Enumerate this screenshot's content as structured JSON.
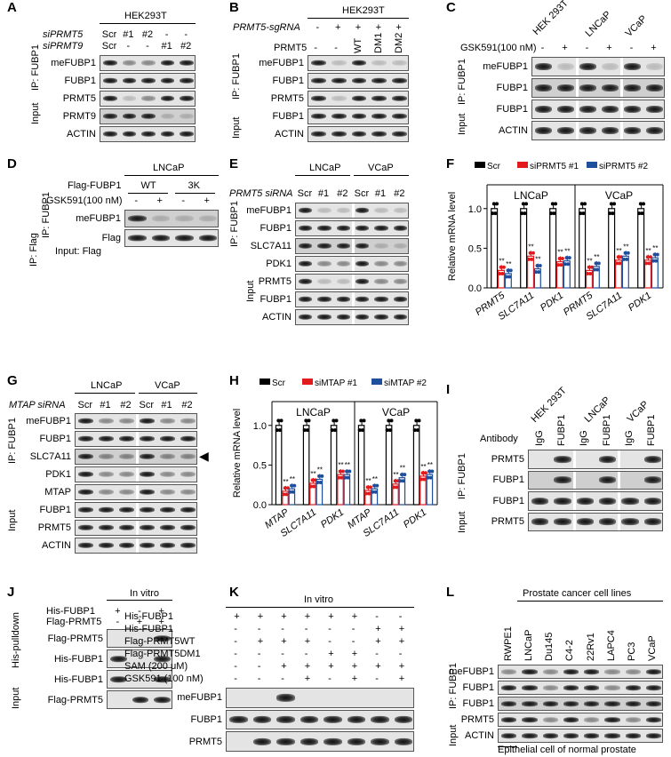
{
  "panels": {
    "A": {
      "label": "A",
      "cell": "HEK293T",
      "row1_label": "siPRMT5",
      "row1_vals": [
        "Scr",
        "#1",
        "#2",
        "-",
        "-"
      ],
      "row2_label": "siPRMT9",
      "row2_vals": [
        "Scr",
        "-",
        "-",
        "#1",
        "#2"
      ],
      "group_ip": "IP: FUBP1",
      "group_input": "Input",
      "blots": [
        "meFUBP1",
        "FUBP1",
        "PRMT5",
        "PRMT9",
        "ACTIN"
      ]
    },
    "B": {
      "label": "B",
      "cell": "HEK293T",
      "row1_label": "PRMT5-sgRNA",
      "row1_vals": [
        "-",
        "+",
        "+",
        "+",
        "+"
      ],
      "row2_label": "PRMT5",
      "row2_vals": [
        "-",
        "-",
        "WT",
        "DM1",
        "DM2"
      ],
      "group_ip": "IP: FUBP1",
      "group_input": "Input",
      "blots": [
        "meFUBP1",
        "FUBP1",
        "PRMT5",
        "FUBP1",
        "ACTIN"
      ]
    },
    "C": {
      "label": "C",
      "cells": [
        "HEK 293T",
        "LNCaP",
        "VCaP"
      ],
      "row1_label": "GSK591(100 nM)",
      "row1_vals": [
        "-",
        "+",
        "-",
        "+",
        "-",
        "+"
      ],
      "group_ip": "IP: FUBP1",
      "group_input": "Input",
      "blots": [
        "meFUBP1",
        "FUBP1",
        "FUBP1",
        "ACTIN"
      ]
    },
    "D": {
      "label": "D",
      "cell": "LNCaP",
      "row1_label": "Flag-FUBP1",
      "row1_vals": [
        "WT",
        "3K"
      ],
      "row2_label": "GSK591(100 nM)",
      "row2_vals": [
        "-",
        "+",
        "-",
        "+"
      ],
      "group_ip": "IP: FUBP1",
      "group_input": "Input: Flag",
      "group_ipflag": "IP: Flag",
      "blots": [
        "meFUBP1",
        "Flag"
      ]
    },
    "E": {
      "label": "E",
      "cells": [
        "LNCaP",
        "VCaP"
      ],
      "row1_label": "PRMT5 siRNA",
      "row1_vals": [
        "Scr",
        "#1",
        "#2",
        "Scr",
        "#1",
        "#2"
      ],
      "group_ip": "IP: FUBP1",
      "group_input": "Input",
      "blots": [
        "meFUBP1",
        "FUBP1",
        "SLC7A11",
        "PDK1",
        "PRMT5",
        "FUBP1",
        "ACTIN"
      ]
    },
    "G": {
      "label": "G",
      "cells": [
        "LNCaP",
        "VCaP"
      ],
      "row1_label": "MTAP siRNA",
      "row1_vals": [
        "Scr",
        "#1",
        "#2",
        "Scr",
        "#1",
        "#2"
      ],
      "group_ip": "IP: FUBP1",
      "group_input": "Input",
      "blots": [
        "meFUBP1",
        "FUBP1",
        "SLC7A11",
        "PDK1",
        "MTAP",
        "FUBP1",
        "PRMT5",
        "ACTIN"
      ]
    },
    "I": {
      "label": "I",
      "cells": [
        "HEK 293T",
        "LNCaP",
        "VCaP"
      ],
      "antibody_label": "Antibody",
      "antibody_vals": [
        "IgG",
        "FUBP1",
        "IgG",
        "FUBP1",
        "IgG",
        "FUBP1"
      ],
      "group_ip": "IP: FUBP1",
      "group_input": "Input",
      "blots": [
        "PRMT5",
        "FUBP1",
        "FUBP1",
        "PRMT5"
      ]
    },
    "J": {
      "label": "J",
      "title": "In vitro",
      "row1_label": "His-FUBP1",
      "row1_vals": [
        "+",
        "-",
        "+"
      ],
      "row2_label": "Flag-PRMT5",
      "row2_vals": [
        "-",
        "+",
        "+"
      ],
      "group_pull": "His-pulldown",
      "group_input": "Input",
      "blots": [
        "Flag-PRMT5",
        "His-FUBP1",
        "His-FUBP1",
        "Flag-PRMT5"
      ]
    },
    "K": {
      "label": "K",
      "title": "In vitro",
      "rows": [
        {
          "label": "His-FUBP1",
          "vals": [
            "+",
            "+",
            "+",
            "+",
            "+",
            "+",
            "-",
            "-"
          ]
        },
        {
          "label": "His-FUBP1",
          "vals": [
            "-",
            "-",
            "-",
            "-",
            "-",
            "-",
            "+",
            "+"
          ]
        },
        {
          "label": "Flag-PRMT5WT",
          "vals": [
            "-",
            "+",
            "+",
            "+",
            "-",
            "-",
            "+",
            "+"
          ]
        },
        {
          "label": "Flag-PRMT5DM1",
          "vals": [
            "-",
            "-",
            "-",
            "-",
            "+",
            "+",
            "-",
            "-"
          ]
        },
        {
          "label": "SAM (200 μM)",
          "vals": [
            "-",
            "-",
            "+",
            "+",
            "+",
            "+",
            "+",
            "+"
          ]
        },
        {
          "label": "GSK591 (100 nM)",
          "vals": [
            "-",
            "-",
            "-",
            "+",
            "-",
            "+",
            "-",
            "+"
          ]
        }
      ],
      "blots": [
        "meFUBP1",
        "FUBP1",
        "PRMT5"
      ]
    },
    "L": {
      "label": "L",
      "title": "Prostate cancer cell lines",
      "cells": [
        "RWPE1",
        "LNCaP",
        "Du145",
        "C4-2",
        "22Rv1",
        "LAPC4",
        "PC3",
        "VCaP"
      ],
      "group_ip": "IP: FUBP1",
      "group_input": "Input",
      "blots": [
        "meFUBP1",
        "FUBP1",
        "FUBP1",
        "PRMT5",
        "ACTIN"
      ],
      "footnote": "Epithelial cell of normal prostate"
    }
  },
  "charts": {
    "F": {
      "label": "F",
      "legend": [
        "Scr",
        "siPRMT5 #1",
        "siPRMT5 #2"
      ],
      "groups": [
        "LNCaP",
        "VCaP"
      ]
    },
    "H": {
      "label": "H",
      "legend": [
        "Scr",
        "siMTAP #1",
        "siMTAP #2"
      ],
      "groups": [
        "LNCaP",
        "VCaP"
      ]
    }
  },
  "chart_data": [
    {
      "type": "bar",
      "panel": "F",
      "ylabel": "Relative mRNA level",
      "ylim": [
        0,
        1.3
      ],
      "yticks": [
        0,
        0.5,
        1.0
      ],
      "categories": [
        "PRMT5",
        "SLC7A11",
        "PDK1",
        "PRMT5",
        "SLC7A11",
        "PDK1"
      ],
      "series": [
        {
          "name": "Scr",
          "color": "#000000",
          "values": [
            1.0,
            1.0,
            1.0,
            1.0,
            1.0,
            1.0
          ]
        },
        {
          "name": "siPRMT5 #1",
          "color": "#e31a1c",
          "values": [
            0.22,
            0.4,
            0.33,
            0.22,
            0.35,
            0.35
          ]
        },
        {
          "name": "siPRMT5 #2",
          "color": "#1f4e9c",
          "values": [
            0.18,
            0.24,
            0.34,
            0.27,
            0.4,
            0.38
          ]
        }
      ],
      "significance": "**"
    },
    {
      "type": "bar",
      "panel": "H",
      "ylabel": "Relative mRNA level",
      "ylim": [
        0,
        1.3
      ],
      "yticks": [
        0,
        0.5,
        1.0
      ],
      "categories": [
        "MTAP",
        "SLC7A11",
        "PDK1",
        "MTAP",
        "SLC7A11",
        "PDK1"
      ],
      "series": [
        {
          "name": "Scr",
          "color": "#000000",
          "values": [
            1.0,
            1.0,
            1.0,
            1.0,
            1.0,
            1.0
          ]
        },
        {
          "name": "siMTAP #1",
          "color": "#e31a1c",
          "values": [
            0.17,
            0.27,
            0.38,
            0.18,
            0.26,
            0.36
          ]
        },
        {
          "name": "siMTAP #2",
          "color": "#1f4e9c",
          "values": [
            0.2,
            0.32,
            0.38,
            0.2,
            0.34,
            0.38
          ]
        }
      ],
      "significance": "**"
    }
  ]
}
